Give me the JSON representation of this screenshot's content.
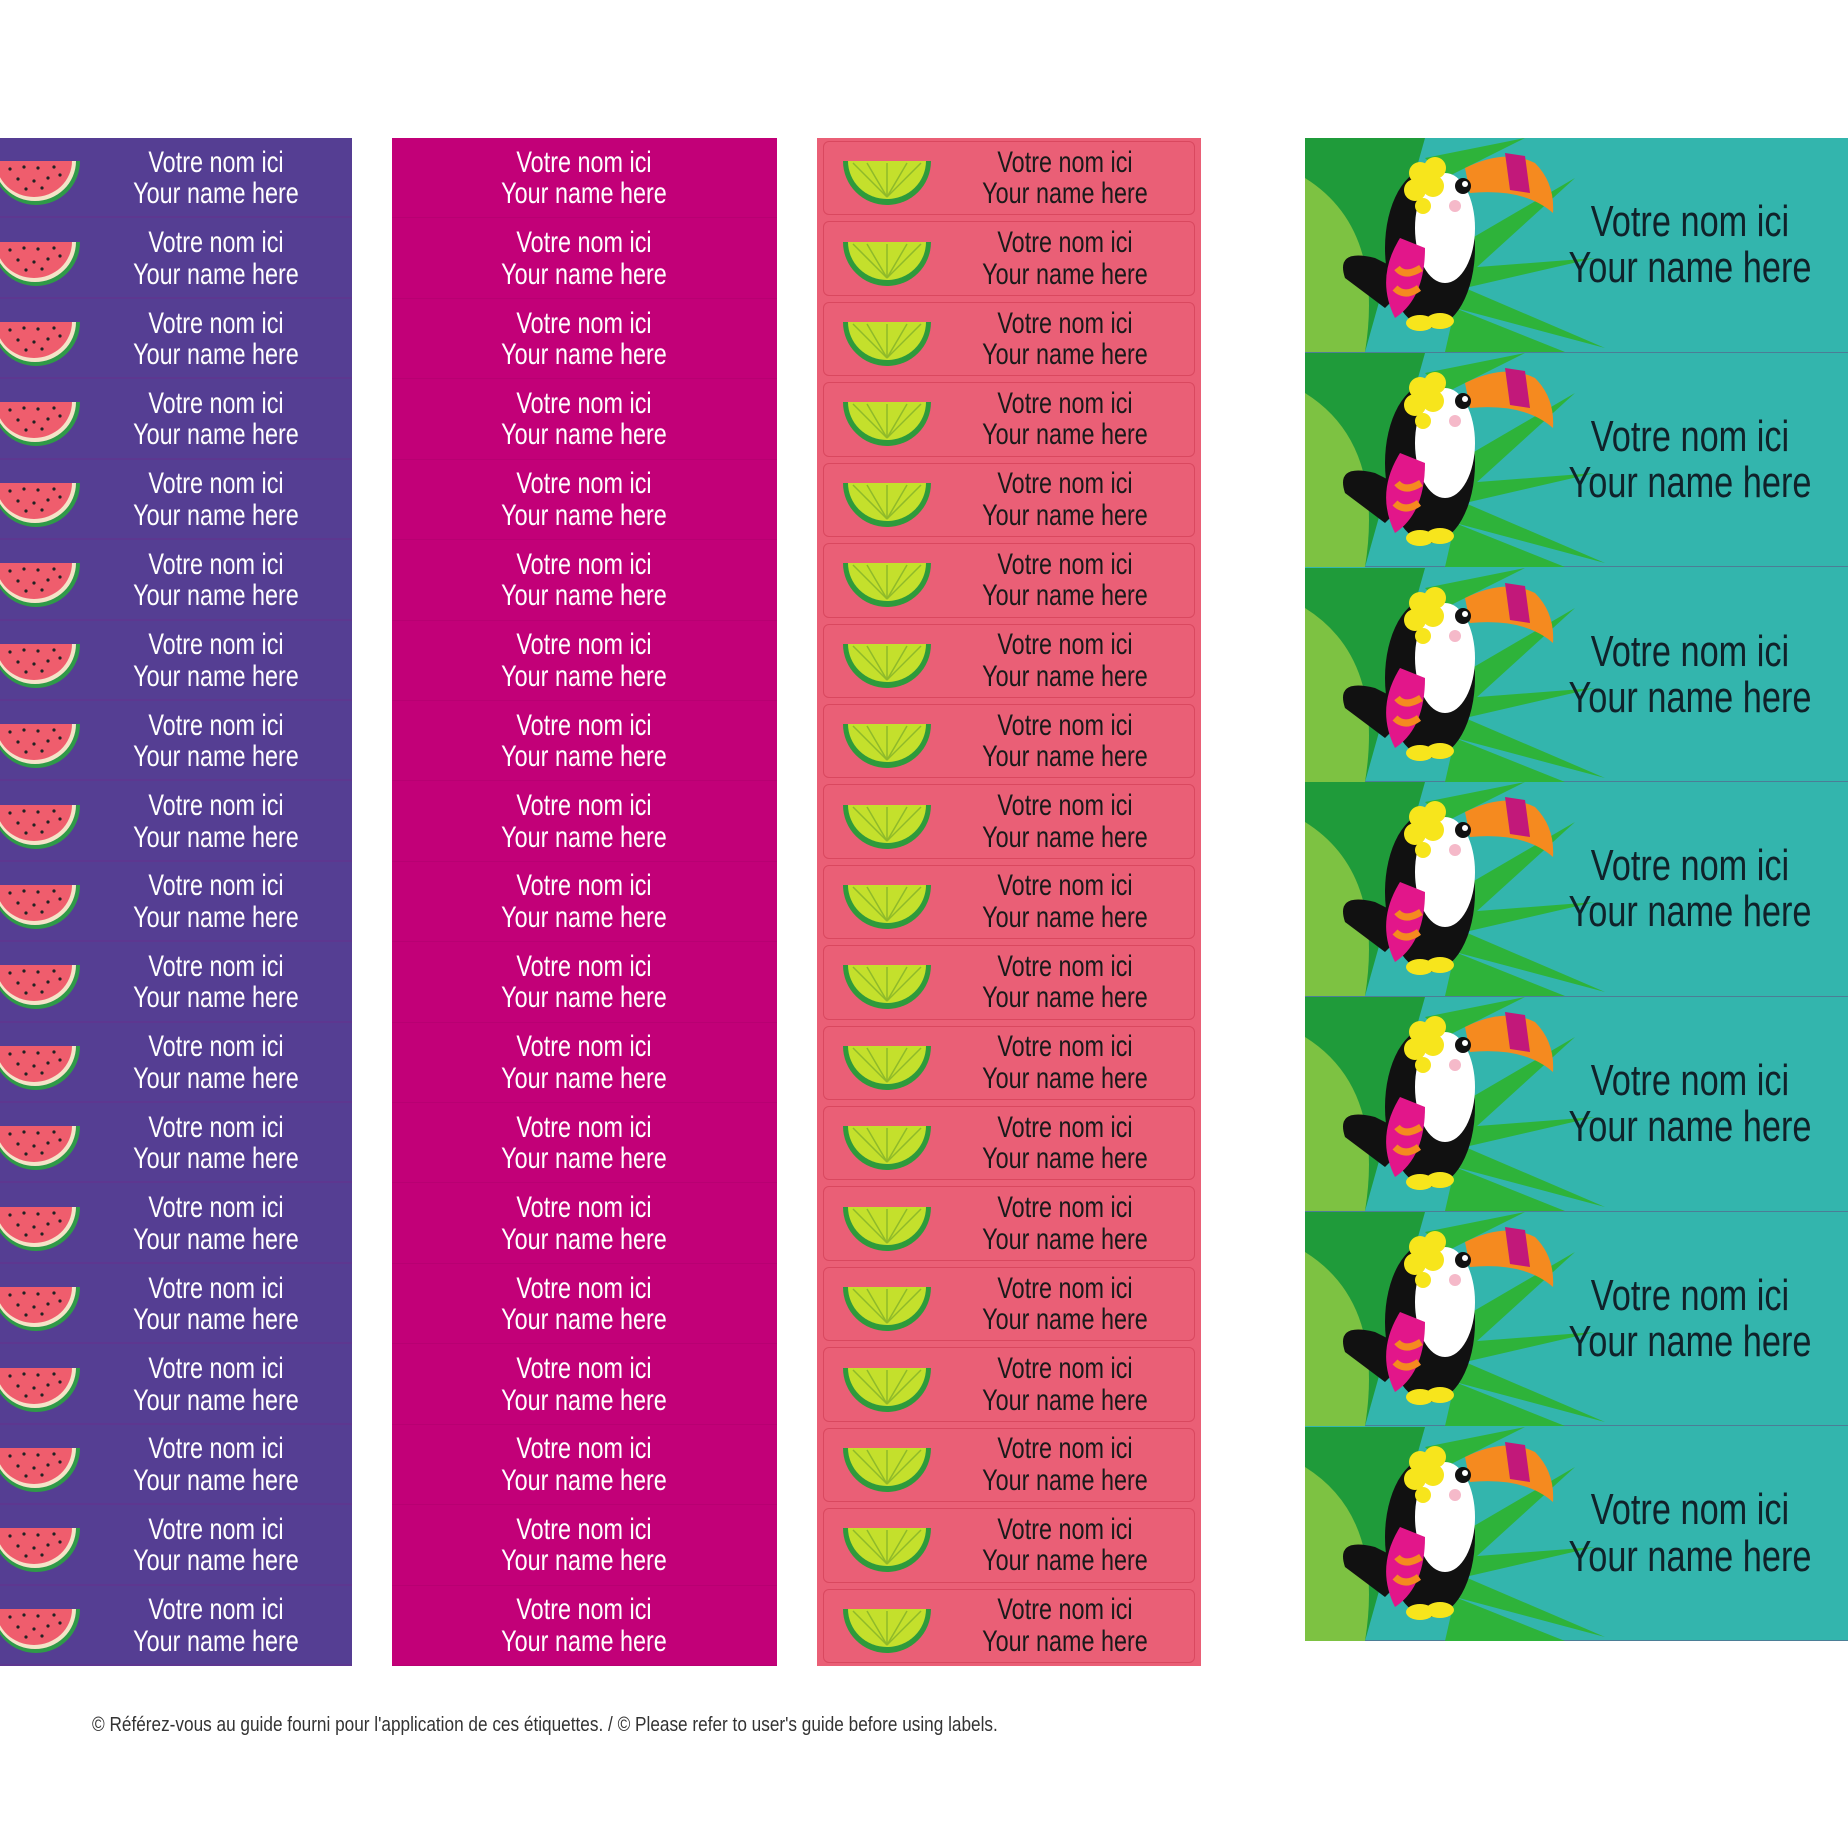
{
  "columns": [
    {
      "id": "watermelon",
      "line1": "Votre nom ici",
      "line2": "Your name here",
      "rows": 19,
      "background": "#553e93",
      "text_color": "#ffffff",
      "icon": "watermelon-icon"
    },
    {
      "id": "magenta",
      "line1": "Votre nom ici",
      "line2": "Your name here",
      "rows": 19,
      "background": "#c20078",
      "text_color": "#ffffff",
      "icon": ""
    },
    {
      "id": "lime",
      "line1": "Votre nom ici",
      "line2": "Your name here",
      "rows": 19,
      "background": "#ea5f76",
      "text_color": "#1a1a1a",
      "icon": "lime-icon"
    },
    {
      "id": "toucan",
      "line1": "Votre nom ici",
      "line2": "Your name here",
      "rows": 7,
      "background": "#33b5ad",
      "text_color": "#10222a",
      "icon": "toucan-icon"
    }
  ],
  "footer": "© Référez-vous au guide fourni pour l'application de ces étiquettes. / © Please refer to user's guide before using labels."
}
